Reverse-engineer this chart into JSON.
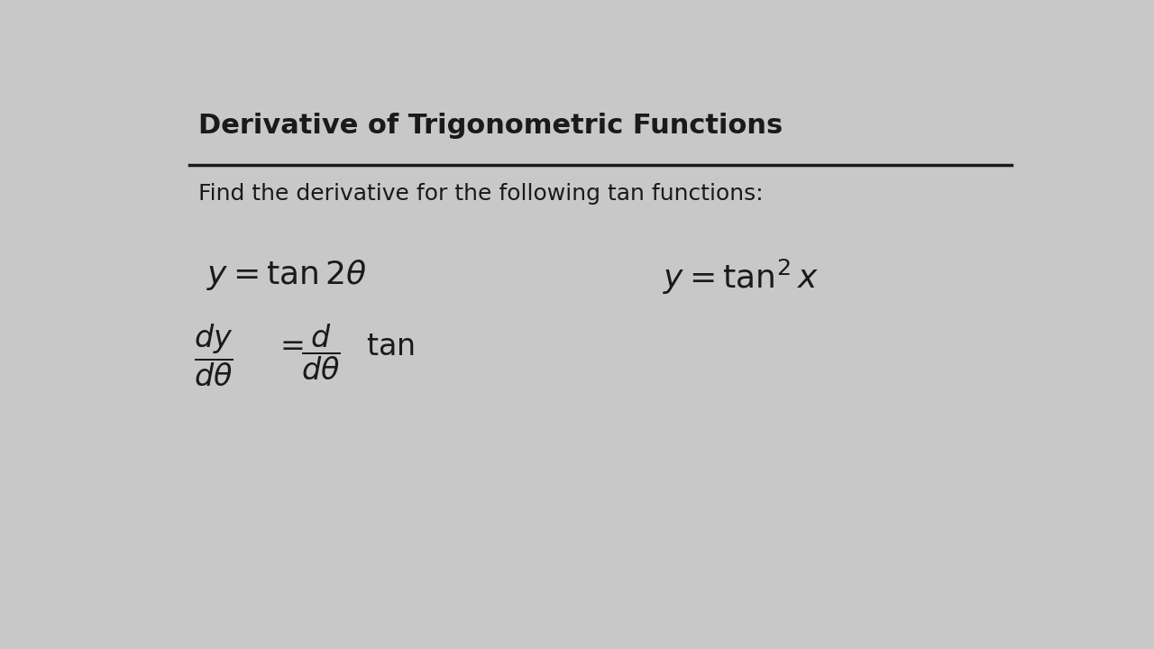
{
  "title": "Derivative of Trigonometric Functions",
  "subtitle": "Find the derivative for the following tan functions:",
  "bg_color": "#c8c8c8",
  "text_color": "#1a1a1a",
  "title_fontsize": 22,
  "subtitle_fontsize": 18,
  "line_color": "#1a1a1a"
}
